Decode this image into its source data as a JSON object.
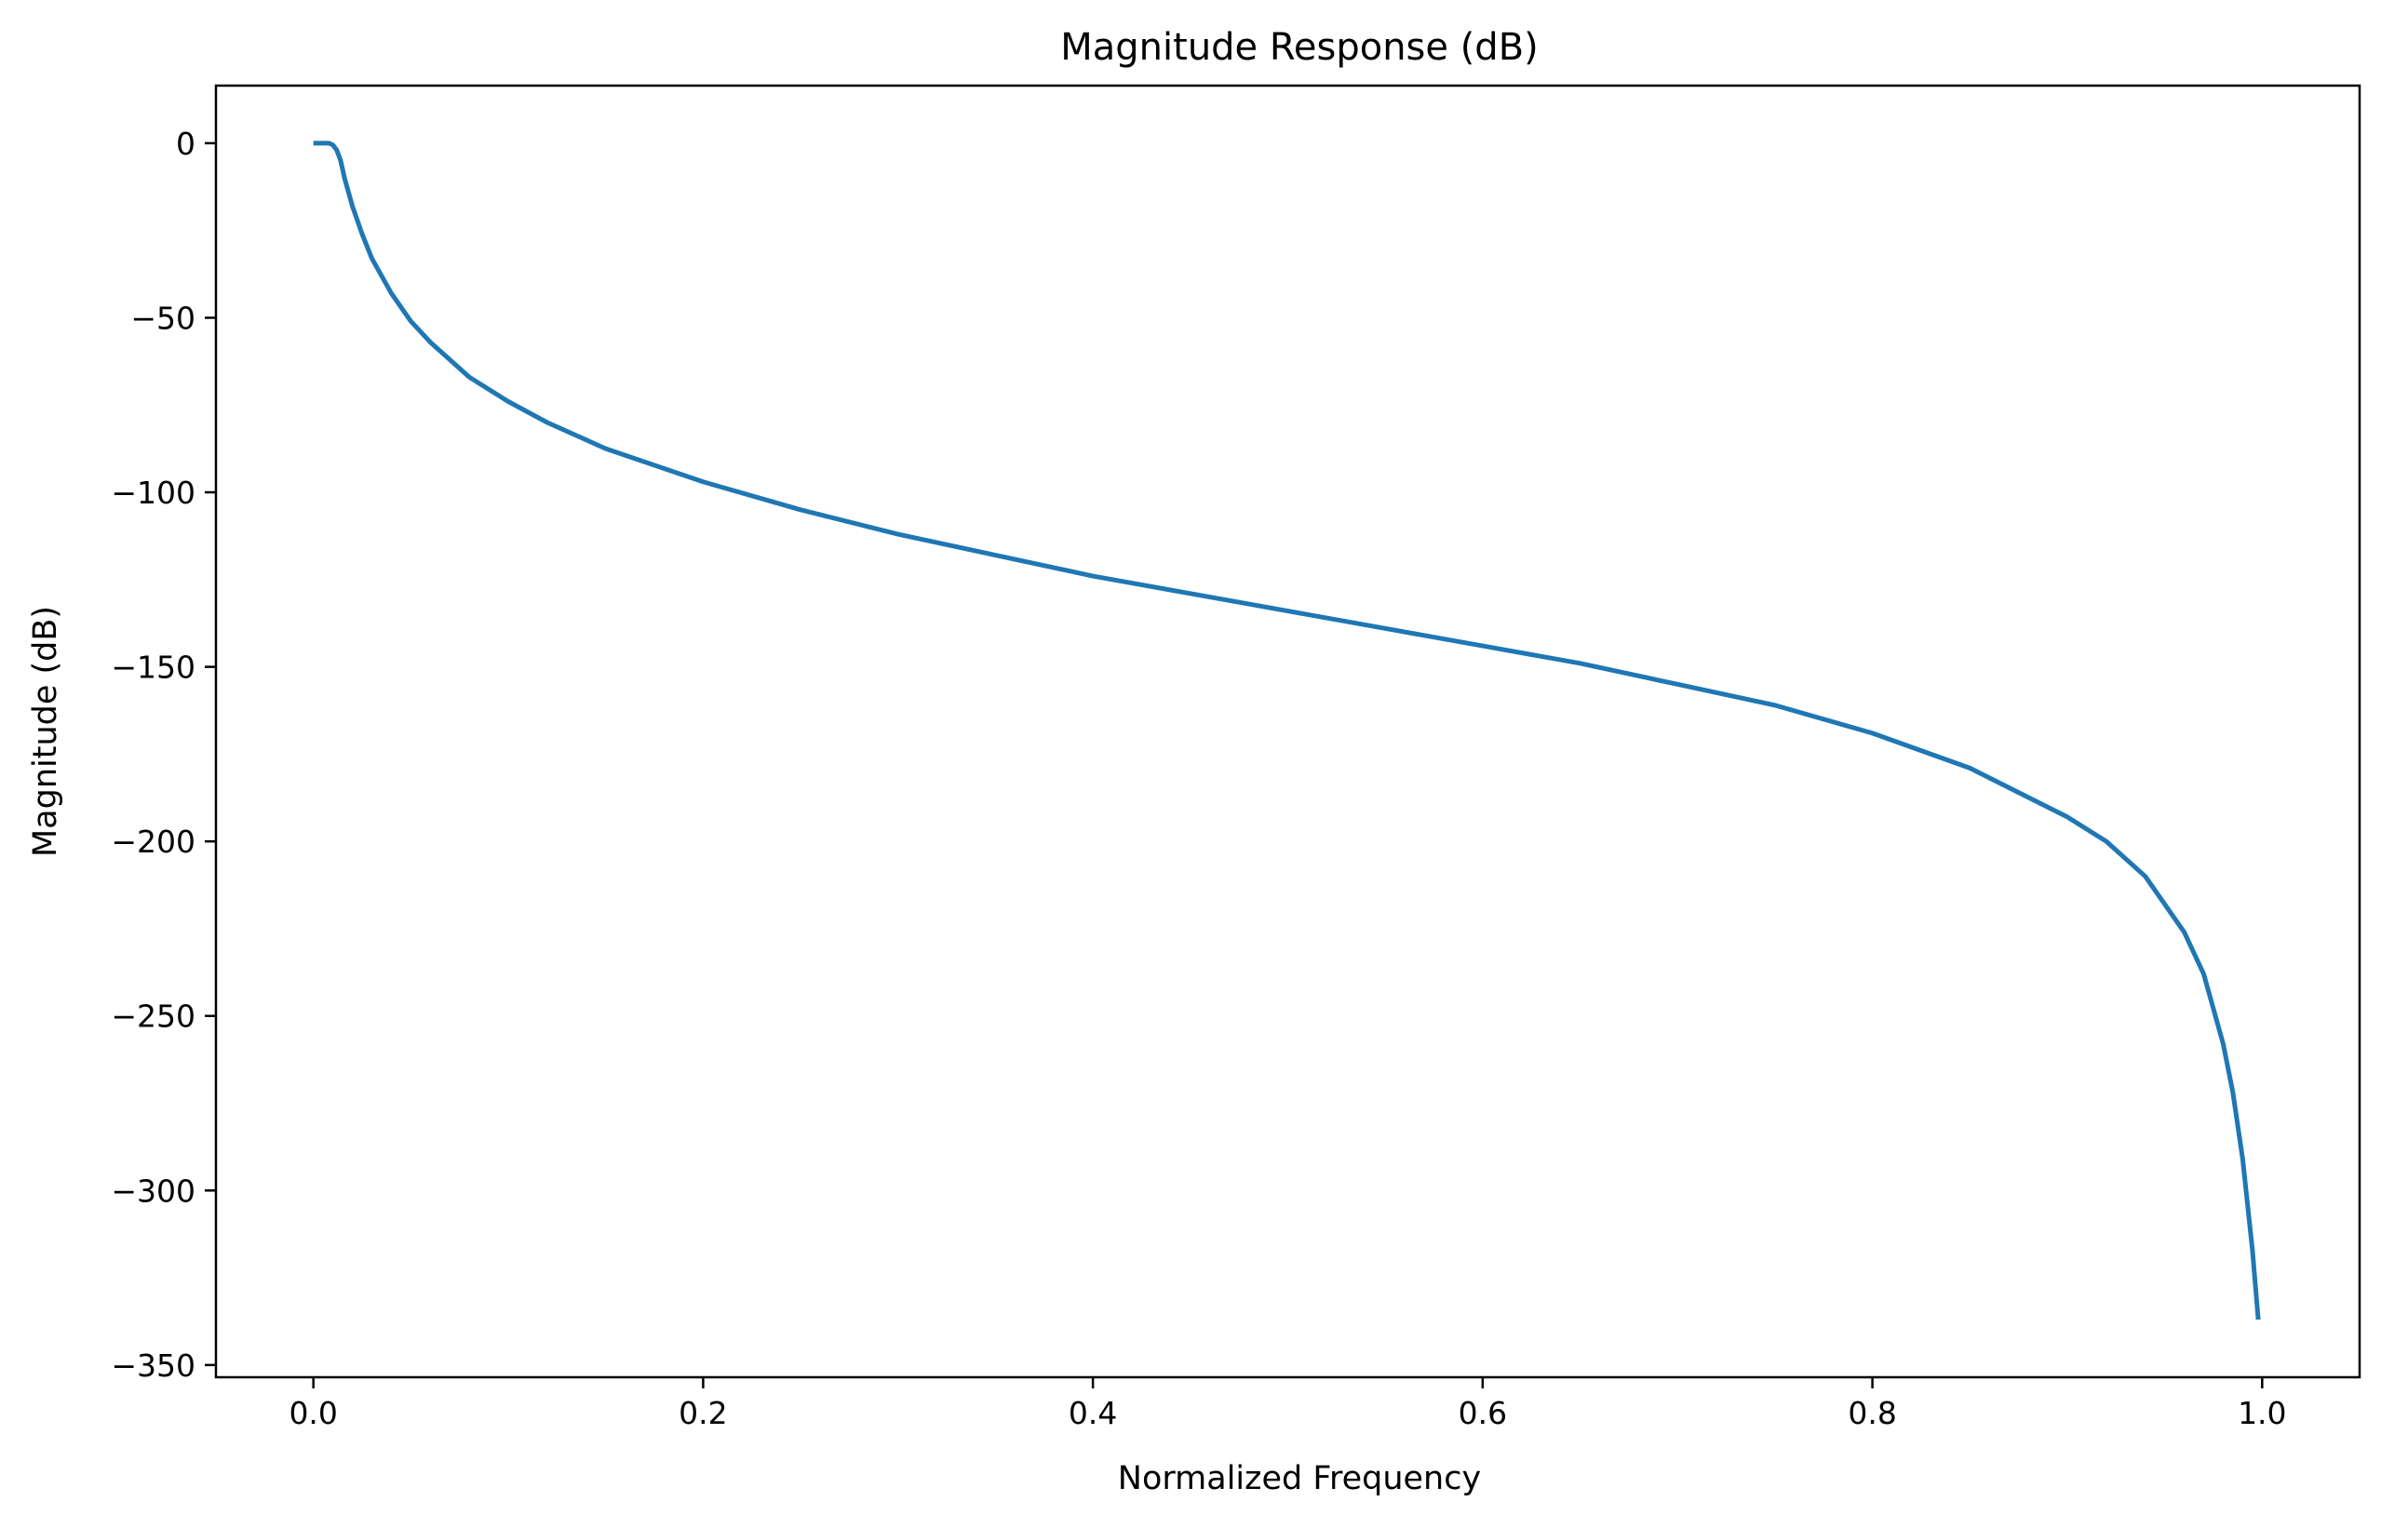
{
  "chart_data": {
    "type": "line",
    "title": "Magnitude Response (dB)",
    "xlabel": "Normalized Frequency",
    "ylabel": "Magnitude (dB)",
    "xlim": [
      -0.05,
      1.05
    ],
    "ylim": [
      -353.5,
      16.5
    ],
    "grid": false,
    "legend": "none",
    "x_ticks": [
      0.0,
      0.2,
      0.4,
      0.6,
      0.8,
      1.0
    ],
    "x_tick_labels": [
      "0.0",
      "0.2",
      "0.4",
      "0.6",
      "0.8",
      "1.0"
    ],
    "y_ticks": [
      0,
      -50,
      -100,
      -150,
      -200,
      -250,
      -300,
      -350
    ],
    "y_tick_labels": [
      "0",
      "−50",
      "−100",
      "−150",
      "−200",
      "−250",
      "−300",
      "−350"
    ],
    "series": [
      {
        "color": "#1f77b4",
        "x": [
          0.0,
          0.005,
          0.008,
          0.01,
          0.012,
          0.014,
          0.016,
          0.018,
          0.02,
          0.025,
          0.03,
          0.04,
          0.05,
          0.06,
          0.07,
          0.08,
          0.1,
          0.12,
          0.15,
          0.2,
          0.25,
          0.3,
          0.35,
          0.4,
          0.45,
          0.5,
          0.55,
          0.6,
          0.65,
          0.7,
          0.75,
          0.8,
          0.85,
          0.9,
          0.92,
          0.94,
          0.96,
          0.97,
          0.98,
          0.985,
          0.99,
          0.995,
          0.998
        ],
        "y": [
          0,
          0,
          0,
          -0.5,
          -2,
          -5,
          -10,
          -14,
          -18,
          -26,
          -33,
          -43,
          -51,
          -57,
          -62,
          -67,
          -74,
          -80,
          -87.5,
          -97,
          -105,
          -112,
          -118,
          -124,
          -129,
          -134,
          -139,
          -144,
          -149,
          -155,
          -161,
          -169,
          -179,
          -193,
          -200,
          -210,
          -226,
          -238,
          -258,
          -272,
          -291,
          -317,
          -337
        ]
      }
    ]
  }
}
